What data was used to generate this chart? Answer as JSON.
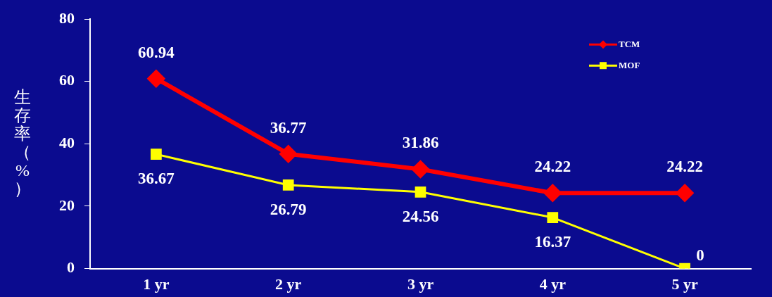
{
  "chart_data": {
    "type": "line",
    "ylabel": "生存率（%）",
    "categories": [
      "1 yr",
      "2 yr",
      "3 yr",
      "4 yr",
      "5 yr"
    ],
    "series": [
      {
        "name": "TCM",
        "color": "#ff0000",
        "marker": "diamond",
        "values": [
          60.94,
          36.77,
          31.86,
          24.22,
          24.22
        ]
      },
      {
        "name": "MOF",
        "color": "#ffff00",
        "marker": "square",
        "values": [
          36.67,
          26.79,
          24.56,
          16.37,
          0
        ]
      }
    ],
    "ylim": [
      0,
      80
    ],
    "yticks": [
      0,
      20,
      40,
      60,
      80
    ],
    "grid": false,
    "legend": "top right",
    "data_labels": true
  }
}
